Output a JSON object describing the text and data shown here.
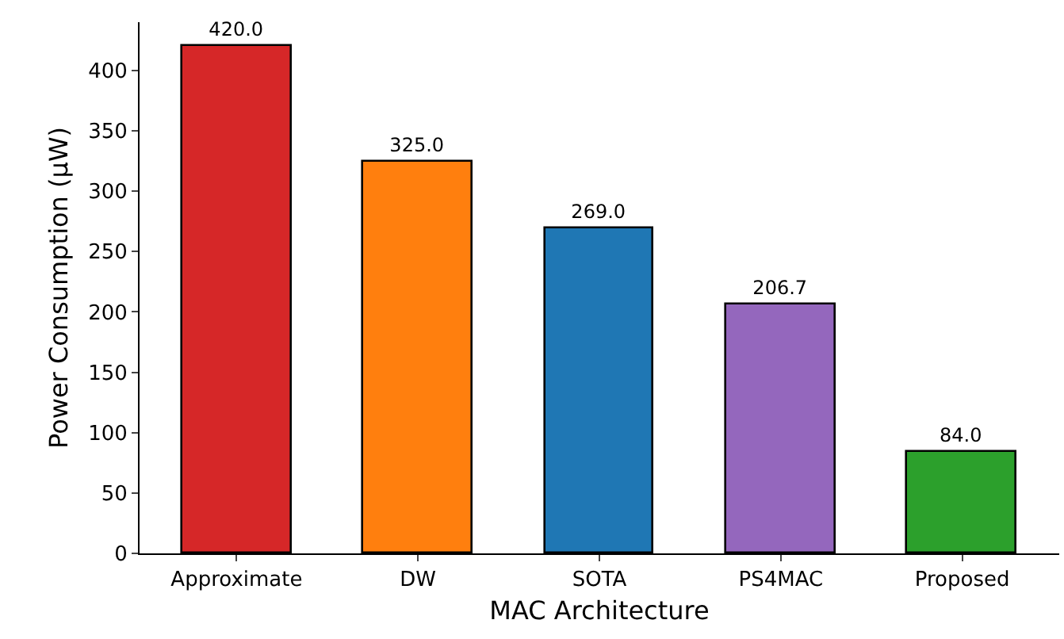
{
  "chart_data": {
    "type": "bar",
    "xlabel": "MAC Architecture",
    "ylabel": "Power Consumption (μW)",
    "categories": [
      "Approximate",
      "DW",
      "SOTA",
      "PS4MAC",
      "Proposed"
    ],
    "values": [
      420.0,
      325.0,
      269.0,
      206.7,
      84.0
    ],
    "colors": [
      "#d62728",
      "#ff7f0e",
      "#1f77b4",
      "#9467bd",
      "#2ca02c"
    ],
    "value_labels": [
      "420.0",
      "325.0",
      "269.0",
      "206.7",
      "84.0"
    ],
    "ylim": [
      0,
      440
    ],
    "yticks": [
      0,
      50,
      100,
      150,
      200,
      250,
      300,
      350,
      400
    ]
  }
}
